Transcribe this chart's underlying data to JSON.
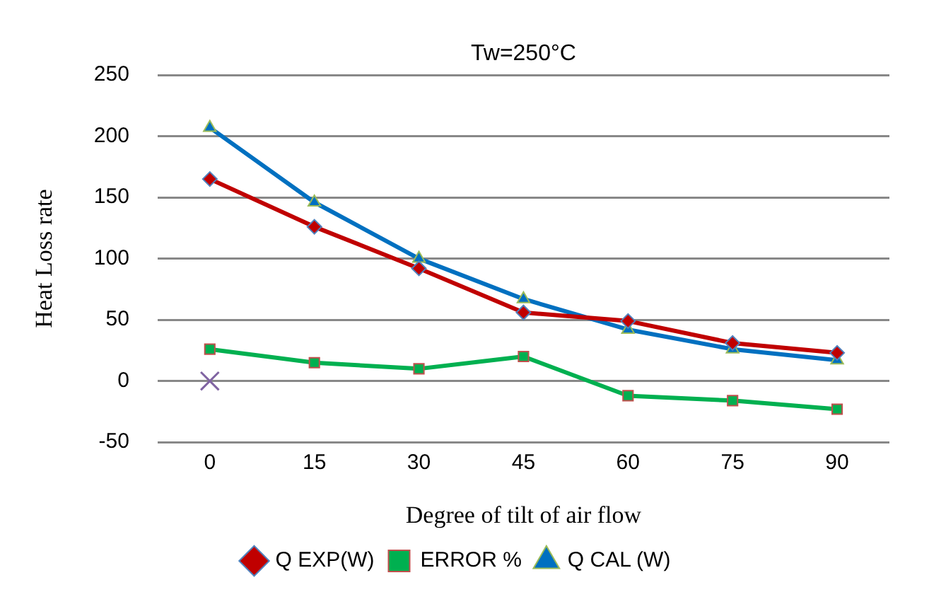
{
  "chart_data": {
    "type": "line",
    "title": "Tw=250°C",
    "xlabel": "Degree of tilt of air flow",
    "ylabel": "Heat Loss rate",
    "categories": [
      "0",
      "15",
      "30",
      "45",
      "60",
      "75",
      "90"
    ],
    "series": [
      {
        "name": "Q EXP(W)",
        "color": "#c00000",
        "marker": "diamond",
        "values": [
          165,
          126,
          92,
          56,
          49,
          31,
          23
        ]
      },
      {
        "name": "ERROR %",
        "color": "#00b050",
        "marker": "square",
        "values": [
          26,
          15,
          10,
          20,
          -12,
          -16,
          -23
        ]
      },
      {
        "name": "Q CAL (W)",
        "color": "#0070c0",
        "marker": "triangle",
        "values": [
          207,
          146,
          100,
          67,
          42,
          26,
          17
        ]
      },
      {
        "type": "scatter",
        "color": "#8064a2",
        "marker": "cross",
        "x": [
          "0"
        ],
        "values": [
          0
        ]
      }
    ],
    "ylim": [
      -50,
      250
    ],
    "yticks": [
      -50,
      0,
      50,
      100,
      150,
      200,
      250
    ],
    "grid": "y",
    "legend": "bottom",
    "line_style": "solid"
  }
}
